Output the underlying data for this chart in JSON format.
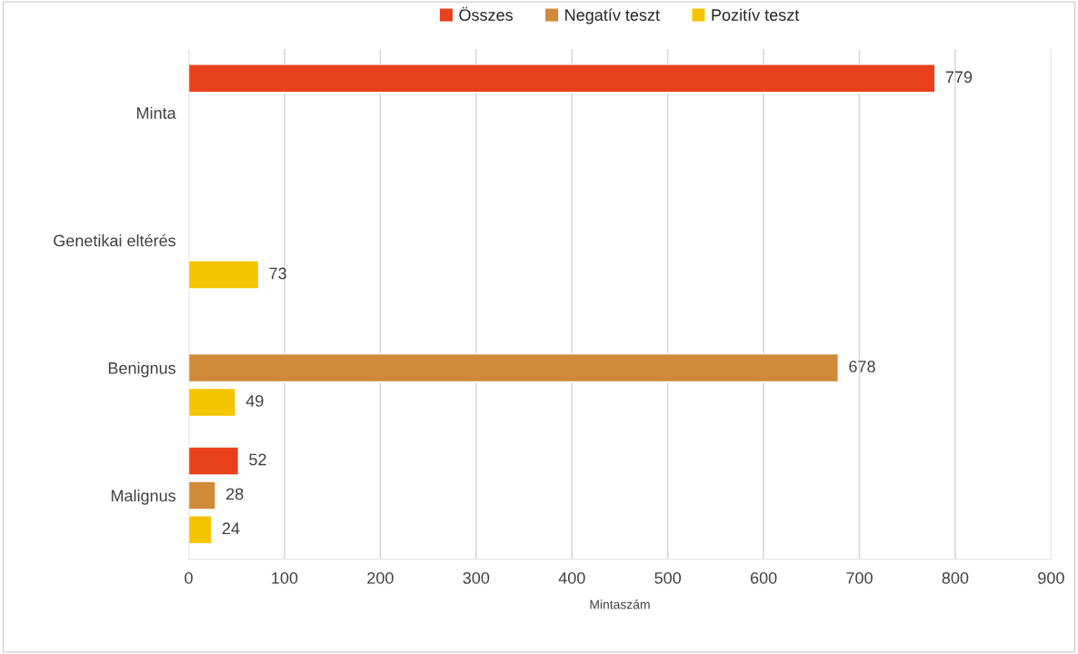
{
  "chart_data": {
    "type": "bar",
    "orientation": "horizontal",
    "categories": [
      "Minta",
      "Genetikai eltérés",
      "Benignus",
      "Malignus"
    ],
    "series": [
      {
        "name": "Összes",
        "color": "#e8401c",
        "values": [
          779,
          null,
          null,
          52
        ]
      },
      {
        "name": "Negatív teszt",
        "color": "#d08a3a",
        "values": [
          null,
          null,
          678,
          28
        ]
      },
      {
        "name": "Pozitív teszt",
        "color": "#f5c400",
        "values": [
          null,
          73,
          49,
          24
        ]
      }
    ],
    "xlabel": "Mintaszám",
    "xlim": [
      0,
      900
    ],
    "xticks": [
      0,
      100,
      200,
      300,
      400,
      500,
      600,
      700,
      800,
      900
    ],
    "grid": "x",
    "legend": "top",
    "data_labels": true
  }
}
